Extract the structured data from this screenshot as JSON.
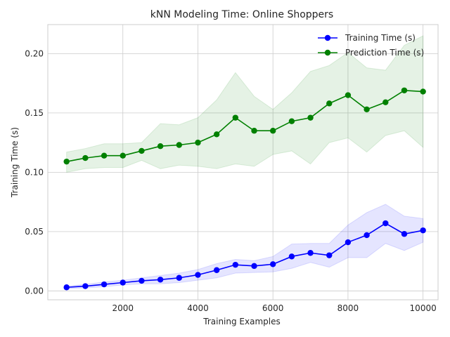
{
  "chart_data": {
    "type": "line",
    "title": "kNN Modeling Time: Online Shoppers",
    "xlabel": "Training Examples",
    "ylabel": "Training Time (s)",
    "xlim": [
      0,
      10400
    ],
    "ylim": [
      -0.0075,
      0.2245
    ],
    "xticks": [
      2000,
      4000,
      6000,
      8000,
      10000
    ],
    "xtick_labels": [
      "2000",
      "4000",
      "6000",
      "8000",
      "10000"
    ],
    "yticks": [
      0.0,
      0.05,
      0.1,
      0.15,
      0.2
    ],
    "ytick_labels": [
      "0.00",
      "0.05",
      "0.10",
      "0.15",
      "0.20"
    ],
    "grid": true,
    "legend_position": "top-right",
    "x": [
      500,
      1000,
      1500,
      2000,
      2500,
      3000,
      3500,
      4000,
      4500,
      5000,
      5500,
      6000,
      6500,
      7000,
      7500,
      8000,
      8500,
      9000,
      9500,
      10000
    ],
    "series": [
      {
        "name": "Training Time (s)",
        "color": "#0000ff",
        "values": [
          0.003,
          0.004,
          0.0055,
          0.007,
          0.0085,
          0.0095,
          0.011,
          0.0135,
          0.0175,
          0.022,
          0.021,
          0.0225,
          0.029,
          0.032,
          0.03,
          0.041,
          0.047,
          0.057,
          0.048,
          0.051
        ],
        "band_upper": [
          0.004,
          0.0055,
          0.0075,
          0.009,
          0.011,
          0.013,
          0.015,
          0.018,
          0.023,
          0.0265,
          0.0255,
          0.029,
          0.0395,
          0.04,
          0.04,
          0.0555,
          0.066,
          0.073,
          0.063,
          0.061
        ],
        "band_lower": [
          0.002,
          0.0025,
          0.0035,
          0.005,
          0.006,
          0.006,
          0.007,
          0.009,
          0.011,
          0.015,
          0.0155,
          0.016,
          0.019,
          0.024,
          0.02,
          0.028,
          0.028,
          0.04,
          0.034,
          0.041
        ]
      },
      {
        "name": "Prediction Time (s)",
        "color": "#008000",
        "values": [
          0.109,
          0.112,
          0.114,
          0.114,
          0.118,
          0.122,
          0.123,
          0.125,
          0.132,
          0.146,
          0.135,
          0.135,
          0.143,
          0.146,
          0.158,
          0.165,
          0.153,
          0.159,
          0.169,
          0.168
        ],
        "band_upper": [
          0.117,
          0.12,
          0.124,
          0.124,
          0.125,
          0.141,
          0.14,
          0.146,
          0.161,
          0.184,
          0.164,
          0.153,
          0.167,
          0.185,
          0.19,
          0.201,
          0.188,
          0.186,
          0.207,
          0.215
        ],
        "band_lower": [
          0.1,
          0.103,
          0.104,
          0.104,
          0.11,
          0.103,
          0.106,
          0.105,
          0.103,
          0.107,
          0.105,
          0.115,
          0.118,
          0.107,
          0.125,
          0.129,
          0.117,
          0.131,
          0.135,
          0.121
        ]
      }
    ]
  }
}
